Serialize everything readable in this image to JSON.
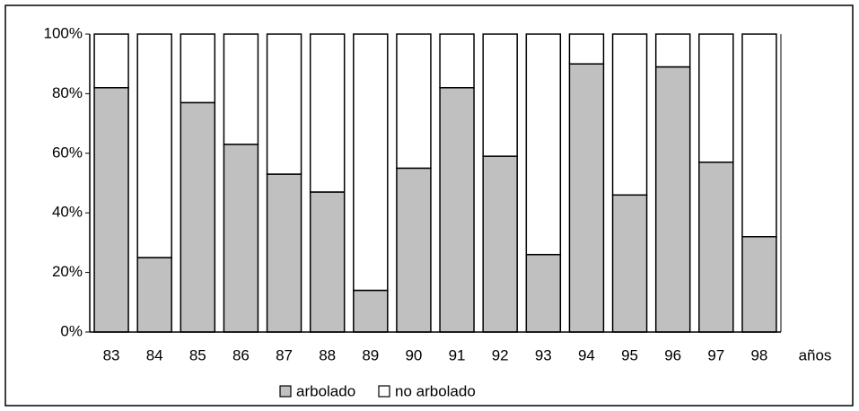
{
  "chart_data": {
    "type": "stacked_bar",
    "x_label": "años",
    "categories": [
      "83",
      "84",
      "85",
      "86",
      "87",
      "88",
      "89",
      "90",
      "91",
      "92",
      "93",
      "94",
      "95",
      "96",
      "97",
      "98"
    ],
    "series": [
      {
        "name": "arbolado",
        "color": "#c0c0c0",
        "values": [
          82,
          25,
          77,
          63,
          53,
          47,
          14,
          55,
          82,
          59,
          26,
          90,
          46,
          89,
          57,
          32
        ]
      },
      {
        "name": "no arbolado",
        "color": "#ffffff",
        "values": [
          18,
          75,
          23,
          37,
          47,
          53,
          86,
          45,
          18,
          41,
          74,
          10,
          54,
          11,
          43,
          68
        ]
      }
    ],
    "ylim": [
      0,
      100
    ],
    "yticks": [
      {
        "value": 0,
        "label": "0%"
      },
      {
        "value": 20,
        "label": "20%"
      },
      {
        "value": 40,
        "label": "40%"
      },
      {
        "value": 60,
        "label": "60%"
      },
      {
        "value": 80,
        "label": "80%"
      },
      {
        "value": 100,
        "label": "100%"
      }
    ],
    "legend": "bottom"
  }
}
